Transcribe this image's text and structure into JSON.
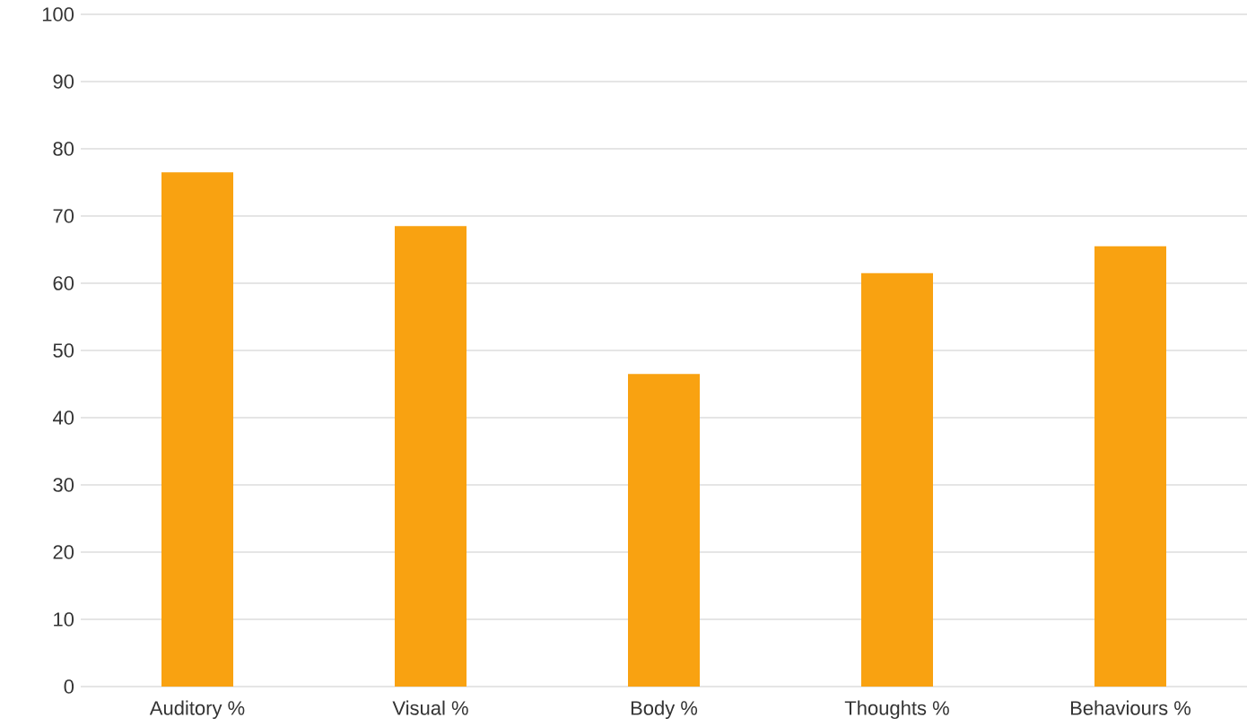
{
  "chart_data": {
    "type": "bar",
    "categories": [
      "Auditory %",
      "Visual %",
      "Body %",
      "Thoughts %",
      "Behaviours  %"
    ],
    "values": [
      76.5,
      68.5,
      46.5,
      61.5,
      65.5
    ],
    "color": "#f9a211",
    "ylim": [
      0,
      100
    ],
    "yticks": [
      0,
      10,
      20,
      30,
      40,
      50,
      60,
      70,
      80,
      90,
      100
    ],
    "grid": "y"
  }
}
